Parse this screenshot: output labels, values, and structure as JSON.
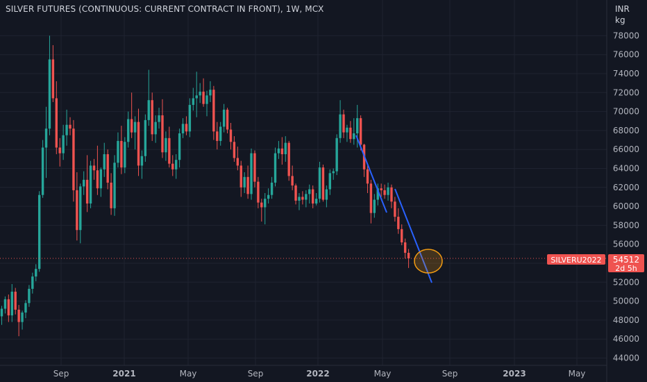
{
  "header": {
    "title": "SILVER FUTURES (CONTINUOUS: CURRENT CONTRACT IN FRONT), 1W, MCX"
  },
  "price_axis": {
    "unit_currency": "INR",
    "unit_weight": "kg",
    "ticks": [
      "78000",
      "76000",
      "74000",
      "72000",
      "70000",
      "68000",
      "66000",
      "64000",
      "62000",
      "60000",
      "58000",
      "56000",
      "54000",
      "52000",
      "50000",
      "48000",
      "46000",
      "44000"
    ]
  },
  "time_axis": {
    "labels": [
      "Sep",
      "2021",
      "May",
      "Sep",
      "2022",
      "May",
      "Sep",
      "2023",
      "May"
    ]
  },
  "last_price": {
    "symbol": "SILVERU2022",
    "price": "54512",
    "countdown": "2d 5h"
  },
  "colors": {
    "background": "#131722",
    "up": "#26a69a",
    "down": "#ef5350",
    "grid": "#1f2330",
    "trendline": "#2962ff",
    "highlight": "#f39c12"
  },
  "chart_data": {
    "type": "candlestick",
    "title": "SILVER FUTURES (CONTINUOUS: CURRENT CONTRACT IN FRONT), 1W, MCX",
    "interval": "1W",
    "exchange": "MCX",
    "y_unit": "INR/kg",
    "ylim": [
      43000,
      79600
    ],
    "x_ticks": [
      {
        "label": "Sep",
        "date": "2020-09"
      },
      {
        "label": "2021",
        "date": "2021-01"
      },
      {
        "label": "May",
        "date": "2021-05"
      },
      {
        "label": "Sep",
        "date": "2021-09"
      },
      {
        "label": "2022",
        "date": "2022-01"
      },
      {
        "label": "May",
        "date": "2022-05"
      },
      {
        "label": "Sep",
        "date": "2022-09"
      },
      {
        "label": "2023",
        "date": "2023-01"
      },
      {
        "label": "May",
        "date": "2023-05"
      }
    ],
    "candles": [
      [
        48400,
        49500,
        47500,
        49200
      ],
      [
        49200,
        50500,
        48700,
        50200
      ],
      [
        50200,
        50700,
        47800,
        48500
      ],
      [
        48500,
        51800,
        47800,
        51000
      ],
      [
        51000,
        51400,
        48600,
        49100
      ],
      [
        49100,
        49600,
        46300,
        47800
      ],
      [
        47800,
        49000,
        47000,
        48800
      ],
      [
        48800,
        50100,
        48200,
        49800
      ],
      [
        49800,
        51700,
        49400,
        51300
      ],
      [
        51300,
        53000,
        50800,
        52600
      ],
      [
        52600,
        53900,
        52100,
        53400
      ],
      [
        53400,
        61600,
        53100,
        61200
      ],
      [
        61200,
        67000,
        60900,
        66200
      ],
      [
        66200,
        70500,
        63000,
        68200
      ],
      [
        68200,
        78000,
        67500,
        75500
      ],
      [
        75500,
        77000,
        71000,
        71400
      ],
      [
        71400,
        73200,
        65500,
        66200
      ],
      [
        66200,
        67200,
        64200,
        65600
      ],
      [
        65600,
        68600,
        64900,
        67500
      ],
      [
        67500,
        70200,
        66400,
        68600
      ],
      [
        68600,
        69400,
        67500,
        68200
      ],
      [
        68200,
        69100,
        60500,
        61700
      ],
      [
        61700,
        63600,
        56400,
        57500
      ],
      [
        57500,
        62400,
        56100,
        62100
      ],
      [
        62100,
        63700,
        61200,
        62800
      ],
      [
        62800,
        65400,
        59400,
        60300
      ],
      [
        60300,
        64800,
        59800,
        64300
      ],
      [
        64300,
        65000,
        62800,
        63800
      ],
      [
        63800,
        66400,
        61200,
        61900
      ],
      [
        61900,
        64100,
        61000,
        63900
      ],
      [
        63900,
        66700,
        63100,
        65500
      ],
      [
        65500,
        66000,
        61800,
        62500
      ],
      [
        62500,
        63500,
        59100,
        59800
      ],
      [
        59800,
        65400,
        59000,
        64600
      ],
      [
        64600,
        67800,
        64100,
        66900
      ],
      [
        66900,
        68500,
        63400,
        64100
      ],
      [
        64100,
        67300,
        63500,
        66800
      ],
      [
        66800,
        70000,
        66200,
        69200
      ],
      [
        69200,
        72000,
        67200,
        67800
      ],
      [
        67800,
        69500,
        66000,
        68900
      ],
      [
        68900,
        70300,
        63200,
        64300
      ],
      [
        64300,
        65900,
        62900,
        65300
      ],
      [
        65300,
        69700,
        64700,
        69100
      ],
      [
        69100,
        74400,
        68500,
        71200
      ],
      [
        71200,
        72000,
        66900,
        67600
      ],
      [
        67600,
        69600,
        66700,
        68900
      ],
      [
        68900,
        70400,
        68200,
        69600
      ],
      [
        69600,
        71300,
        65100,
        65700
      ],
      [
        65700,
        67900,
        64800,
        67200
      ],
      [
        67200,
        68400,
        64100,
        64500
      ],
      [
        64500,
        65400,
        63200,
        63900
      ],
      [
        63900,
        65500,
        62900,
        64900
      ],
      [
        64900,
        68200,
        64100,
        67700
      ],
      [
        67700,
        69300,
        67200,
        68700
      ],
      [
        68700,
        69500,
        67500,
        67900
      ],
      [
        67900,
        71400,
        67300,
        70700
      ],
      [
        70700,
        72500,
        70100,
        71400
      ],
      [
        71400,
        74200,
        69400,
        71700
      ],
      [
        71700,
        73000,
        70900,
        72100
      ],
      [
        72100,
        73500,
        70500,
        70800
      ],
      [
        70800,
        72200,
        69500,
        71700
      ],
      [
        71700,
        73200,
        71000,
        72300
      ],
      [
        72300,
        72700,
        67000,
        67900
      ],
      [
        67900,
        68900,
        66000,
        66900
      ],
      [
        66900,
        68900,
        66400,
        68400
      ],
      [
        68400,
        70800,
        67800,
        70200
      ],
      [
        70200,
        70400,
        67700,
        68100
      ],
      [
        68100,
        68800,
        66000,
        66800
      ],
      [
        66800,
        67400,
        64700,
        65100
      ],
      [
        65100,
        66300,
        63800,
        64300
      ],
      [
        64300,
        64800,
        61000,
        62000
      ],
      [
        62000,
        63600,
        61400,
        63100
      ],
      [
        63100,
        64300,
        60800,
        61300
      ],
      [
        61300,
        66100,
        60700,
        65600
      ],
      [
        65600,
        65900,
        62000,
        62600
      ],
      [
        62600,
        63100,
        59800,
        60400
      ],
      [
        60400,
        60800,
        58400,
        59900
      ],
      [
        59900,
        61400,
        58100,
        60800
      ],
      [
        60800,
        61900,
        60300,
        61200
      ],
      [
        61200,
        63100,
        60800,
        62500
      ],
      [
        62500,
        66200,
        62100,
        65600
      ],
      [
        65600,
        66900,
        65000,
        66100
      ],
      [
        66100,
        67300,
        64400,
        65500
      ],
      [
        65500,
        67400,
        64700,
        66700
      ],
      [
        66700,
        66900,
        62700,
        63200
      ],
      [
        63200,
        64300,
        61700,
        62200
      ],
      [
        62200,
        62400,
        60200,
        60600
      ],
      [
        60600,
        61400,
        59600,
        61000
      ],
      [
        61000,
        61600,
        60200,
        60700
      ],
      [
        60700,
        61700,
        59900,
        61300
      ],
      [
        61300,
        62300,
        60300,
        61800
      ],
      [
        61800,
        62200,
        59800,
        60300
      ],
      [
        60300,
        61400,
        60100,
        60800
      ],
      [
        60800,
        64700,
        60400,
        64100
      ],
      [
        64100,
        64400,
        60500,
        60700
      ],
      [
        60700,
        62200,
        59900,
        61800
      ],
      [
        61800,
        63900,
        61200,
        63500
      ],
      [
        63500,
        64000,
        62800,
        63700
      ],
      [
        63700,
        67600,
        63300,
        67200
      ],
      [
        67200,
        71200,
        66700,
        69700
      ],
      [
        69700,
        70200,
        67200,
        67800
      ],
      [
        67800,
        68600,
        66800,
        68300
      ],
      [
        68300,
        69000,
        66700,
        67100
      ],
      [
        67100,
        69300,
        66500,
        67700
      ],
      [
        67700,
        70700,
        66200,
        69300
      ],
      [
        69300,
        69600,
        65900,
        66500
      ],
      [
        66500,
        66600,
        63100,
        63900
      ],
      [
        63900,
        64300,
        61400,
        62400
      ],
      [
        62400,
        62800,
        58200,
        59300
      ],
      [
        59300,
        61300,
        58800,
        60700
      ],
      [
        60700,
        62400,
        60100,
        61900
      ],
      [
        61900,
        62400,
        61000,
        61700
      ],
      [
        61700,
        62300,
        60800,
        61200
      ],
      [
        61200,
        62500,
        60600,
        62000
      ],
      [
        62000,
        62300,
        59800,
        60500
      ],
      [
        60500,
        61000,
        58400,
        58900
      ],
      [
        58900,
        59800,
        57100,
        57600
      ],
      [
        57600,
        58100,
        55900,
        56200
      ],
      [
        56200,
        56600,
        54500,
        55100
      ],
      [
        55100,
        55500,
        53500,
        54512
      ]
    ],
    "annotations": [
      {
        "type": "trendline",
        "from": [
          67500,
          "2022-03"
        ],
        "to": [
          59300,
          "2022-05"
        ]
      },
      {
        "type": "trendline",
        "from": [
          61900,
          "2022-06"
        ],
        "to": [
          52000,
          "2022-08"
        ]
      },
      {
        "type": "ellipse",
        "center_price": 54500,
        "note": "highlight around last candle"
      }
    ]
  }
}
